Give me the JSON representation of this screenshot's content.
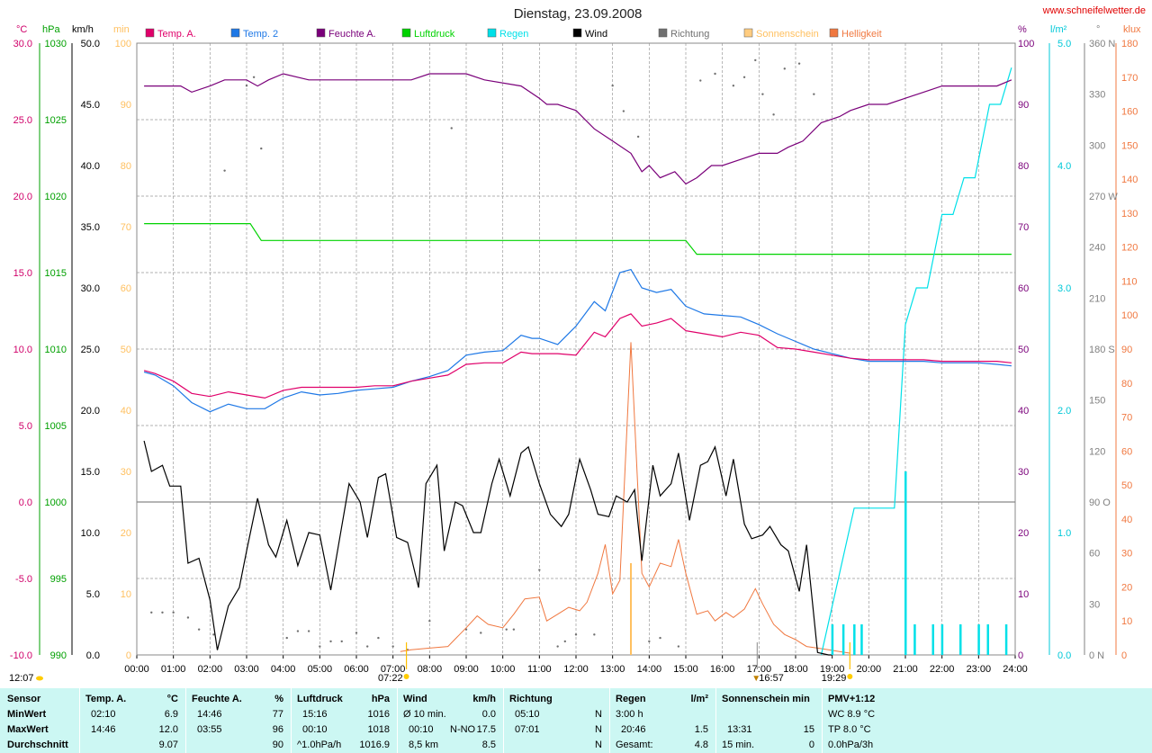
{
  "header": {
    "title": "Dienstag, 23.09.2008",
    "website": "www.schneifelwetter.de"
  },
  "legend": [
    {
      "label": "Temp. A.",
      "color": "#e0006a"
    },
    {
      "label": "Temp. 2",
      "color": "#1e78e6"
    },
    {
      "label": "Feuchte A.",
      "color": "#7a007a"
    },
    {
      "label": "Luftdruck",
      "color": "#00d200"
    },
    {
      "label": "Regen",
      "color": "#00e0e8"
    },
    {
      "label": "Wind",
      "color": "#000000"
    },
    {
      "label": "Richtung",
      "color": "#707070"
    },
    {
      "label": "Sonnenschein",
      "color": "#ffcc80"
    },
    {
      "label": "Helligkeit",
      "color": "#f07840"
    }
  ],
  "axes": {
    "temp": {
      "unit": "°C",
      "color": "#d0006a",
      "ticks": [
        "30.0",
        "25.0",
        "20.0",
        "15.0",
        "10.0",
        "5.0",
        "0.0",
        "-5.0",
        "-10.0"
      ]
    },
    "pressure": {
      "unit": "hPa",
      "color": "#00a000",
      "ticks": [
        "1030",
        "1025",
        "1020",
        "1015",
        "1010",
        "1005",
        "1000",
        "995",
        "990"
      ]
    },
    "wind": {
      "unit": "km/h",
      "color": "#000000",
      "ticks": [
        "50.0",
        "45.0",
        "40.0",
        "35.0",
        "30.0",
        "25.0",
        "20.0",
        "15.0",
        "10.0",
        "5.0",
        "0.0"
      ]
    },
    "sun": {
      "unit": "min",
      "color": "#ffc060",
      "ticks": [
        "100",
        "90",
        "80",
        "70",
        "60",
        "50",
        "40",
        "30",
        "20",
        "10",
        "0"
      ]
    },
    "humidity": {
      "unit": "%",
      "color": "#7a007a",
      "ticks": [
        "100",
        "90",
        "80",
        "70",
        "60",
        "50",
        "40",
        "30",
        "20",
        "10",
        "0"
      ]
    },
    "rain": {
      "unit": "l/m²",
      "color": "#00c8d8",
      "ticks": [
        "5.0",
        "4.0",
        "3.0",
        "2.0",
        "1.0",
        "0.0"
      ]
    },
    "direction": {
      "unit": "°",
      "color": "#808080",
      "ticks": [
        "360 N",
        "330",
        "300",
        "270 W",
        "240",
        "210",
        "180 S",
        "150",
        "120",
        "90 O",
        "60",
        "30",
        "0 N"
      ]
    },
    "light": {
      "unit": "klux",
      "color": "#f07840",
      "ticks": [
        "180",
        "170",
        "160",
        "150",
        "140",
        "130",
        "120",
        "110",
        "100",
        "90",
        "80",
        "70",
        "60",
        "50",
        "40",
        "30",
        "20",
        "10",
        "0"
      ]
    },
    "time_ticks": [
      "00:00",
      "01:00",
      "02:00",
      "03:00",
      "04:00",
      "05:00",
      "06:00",
      "07:00",
      "08:00",
      "09:00",
      "10:00",
      "11:00",
      "12:00",
      "13:00",
      "14:00",
      "15:00",
      "16:00",
      "17:00",
      "18:00",
      "19:00",
      "20:00",
      "21:00",
      "22:00",
      "23:00",
      "24:00"
    ]
  },
  "markers": {
    "sunrise": "07:22",
    "sunset": "19:29",
    "noon": "12:07",
    "max_light_time": "13:31",
    "annot_16": "16:57"
  },
  "chart_data": {
    "type": "line",
    "title": "Dienstag, 23.09.2008",
    "x_unit": "hours",
    "series": [
      {
        "name": "Temp. A.",
        "axis": "temp",
        "color": "#e0006a",
        "x": [
          0.2,
          0.5,
          1.0,
          1.5,
          2.0,
          2.5,
          3.0,
          3.5,
          4.0,
          4.5,
          5.0,
          5.5,
          6.0,
          6.5,
          7.0,
          7.5,
          8.0,
          8.5,
          9.0,
          9.5,
          10.0,
          10.5,
          10.8,
          11.0,
          11.5,
          12.0,
          12.5,
          12.8,
          13.2,
          13.5,
          13.8,
          14.2,
          14.6,
          15.0,
          15.5,
          16.0,
          16.5,
          17.0,
          17.5,
          18.0,
          18.5,
          19.0,
          19.5,
          20.0,
          20.5,
          21.0,
          21.5,
          22.0,
          22.5,
          23.0,
          23.5,
          23.9
        ],
        "y": [
          8.6,
          8.4,
          7.9,
          7.1,
          6.9,
          7.2,
          7.0,
          6.8,
          7.3,
          7.5,
          7.5,
          7.5,
          7.5,
          7.6,
          7.6,
          7.9,
          8.1,
          8.3,
          9.0,
          9.1,
          9.1,
          9.8,
          9.7,
          9.7,
          9.7,
          9.6,
          11.1,
          10.8,
          12.0,
          12.3,
          11.5,
          11.7,
          12.0,
          11.2,
          11.0,
          10.8,
          11.1,
          10.9,
          10.1,
          10.0,
          9.8,
          9.6,
          9.4,
          9.3,
          9.3,
          9.3,
          9.3,
          9.2,
          9.2,
          9.2,
          9.2,
          9.1
        ]
      },
      {
        "name": "Temp. 2",
        "axis": "temp",
        "color": "#1e78e6",
        "x": [
          0.2,
          0.5,
          1.0,
          1.5,
          2.0,
          2.5,
          3.0,
          3.5,
          4.0,
          4.5,
          5.0,
          5.5,
          6.0,
          6.5,
          7.0,
          7.5,
          8.0,
          8.5,
          9.0,
          9.5,
          10.0,
          10.5,
          10.8,
          11.0,
          11.5,
          12.0,
          12.5,
          12.8,
          13.2,
          13.5,
          13.8,
          14.2,
          14.6,
          15.0,
          15.5,
          16.0,
          16.5,
          17.0,
          17.5,
          18.0,
          18.5,
          19.0,
          19.5,
          20.0,
          20.5,
          21.0,
          21.5,
          22.0,
          22.5,
          23.0,
          23.5,
          23.9
        ],
        "y": [
          8.5,
          8.3,
          7.6,
          6.5,
          5.9,
          6.4,
          6.1,
          6.1,
          6.8,
          7.2,
          7.0,
          7.1,
          7.3,
          7.4,
          7.5,
          7.9,
          8.2,
          8.6,
          9.6,
          9.8,
          9.9,
          10.9,
          10.7,
          10.7,
          10.3,
          11.5,
          13.1,
          12.5,
          15.0,
          15.2,
          14.0,
          13.7,
          13.9,
          12.8,
          12.3,
          12.2,
          12.1,
          11.6,
          11.0,
          10.5,
          10.0,
          9.7,
          9.4,
          9.2,
          9.2,
          9.2,
          9.2,
          9.1,
          9.1,
          9.1,
          9.0,
          8.9
        ]
      },
      {
        "name": "Feuchte A.",
        "axis": "humidity",
        "color": "#7a007a",
        "x": [
          0.2,
          1.2,
          1.5,
          2.0,
          2.4,
          3.0,
          3.3,
          3.6,
          4.0,
          4.7,
          5.2,
          7.5,
          8.0,
          9.0,
          9.5,
          10.5,
          11.0,
          11.2,
          11.5,
          12.0,
          12.5,
          13.0,
          13.5,
          13.8,
          14.0,
          14.3,
          14.7,
          15.0,
          15.3,
          15.7,
          16.0,
          16.5,
          17.0,
          17.5,
          17.8,
          18.2,
          18.7,
          19.2,
          19.5,
          20.0,
          20.5,
          21.0,
          21.5,
          22.0,
          23.5,
          23.9
        ],
        "y": [
          93,
          93,
          92,
          93,
          94,
          94,
          93,
          94,
          95,
          94,
          94,
          94,
          95,
          95,
          94,
          93,
          91,
          90,
          90,
          89,
          86,
          84,
          82,
          79,
          80,
          78,
          79,
          77,
          78,
          80,
          80,
          81,
          82,
          82,
          83,
          84,
          87,
          88,
          89,
          90,
          90,
          91,
          92,
          93,
          93,
          94
        ]
      },
      {
        "name": "Luftdruck",
        "axis": "pressure",
        "color": "#00d200",
        "x": [
          0.2,
          3.1,
          3.4,
          15.0,
          15.3,
          23.9
        ],
        "y": [
          1018.2,
          1018.2,
          1017.1,
          1017.1,
          1016.2,
          1016.2
        ]
      },
      {
        "name": "Regen",
        "axis": "rain",
        "color": "#00e0e8",
        "x": [
          18.7,
          19.6,
          20.7,
          21.0,
          21.3,
          21.6,
          22.0,
          22.3,
          22.6,
          22.9,
          23.1,
          23.3,
          23.6,
          23.9
        ],
        "y": [
          0.0,
          1.2,
          1.2,
          2.7,
          3.0,
          3.0,
          3.6,
          3.6,
          3.9,
          3.9,
          4.2,
          4.5,
          4.5,
          4.8
        ]
      },
      {
        "name": "Wind",
        "axis": "wind",
        "color": "#000000",
        "x": [
          0.2,
          0.4,
          0.7,
          0.9,
          1.2,
          1.4,
          1.7,
          2.0,
          2.2,
          2.5,
          2.8,
          3.0,
          3.3,
          3.6,
          3.8,
          4.1,
          4.4,
          4.7,
          5.0,
          5.3,
          5.6,
          5.8,
          6.1,
          6.3,
          6.6,
          6.8,
          7.1,
          7.4,
          7.7,
          7.9,
          8.2,
          8.4,
          8.7,
          8.9,
          9.2,
          9.4,
          9.7,
          9.9,
          10.2,
          10.5,
          10.7,
          11.0,
          11.3,
          11.6,
          11.8,
          12.1,
          12.4,
          12.6,
          12.9,
          13.1,
          13.4,
          13.6,
          13.8,
          14.1,
          14.3,
          14.6,
          14.8,
          15.1,
          15.4,
          15.6,
          15.8,
          16.1,
          16.3,
          16.6,
          16.8,
          17.1,
          17.3,
          17.6,
          17.8,
          18.1,
          18.3,
          18.6,
          18.9,
          19.0
        ],
        "y": [
          17.5,
          15.0,
          15.5,
          13.8,
          13.8,
          7.5,
          7.9,
          4.5,
          0.4,
          4.0,
          5.5,
          8.5,
          12.8,
          9.0,
          8.0,
          11.0,
          7.3,
          10.0,
          9.8,
          5.3,
          10.5,
          14.0,
          12.5,
          9.6,
          14.5,
          14.8,
          9.6,
          9.2,
          5.5,
          14.0,
          15.5,
          8.5,
          12.5,
          12.2,
          10.0,
          10.0,
          14.0,
          16.0,
          13.0,
          16.5,
          17.0,
          14.0,
          11.5,
          10.5,
          11.5,
          16.0,
          13.5,
          11.5,
          11.3,
          13.0,
          12.5,
          13.5,
          7.7,
          15.5,
          13.0,
          14.0,
          16.5,
          11.0,
          15.5,
          15.8,
          17.0,
          13.0,
          16.0,
          10.7,
          9.5,
          9.8,
          10.5,
          9.0,
          8.5,
          5.2,
          9.0,
          0.2,
          0.0,
          0.0
        ]
      },
      {
        "name": "Helligkeit",
        "axis": "light",
        "color": "#f07840",
        "x": [
          7.2,
          7.5,
          8.0,
          8.5,
          9.0,
          9.3,
          9.6,
          10.0,
          10.3,
          10.6,
          11.0,
          11.2,
          11.5,
          11.8,
          12.1,
          12.3,
          12.6,
          12.8,
          13.0,
          13.2,
          13.5,
          13.8,
          14.0,
          14.3,
          14.6,
          14.8,
          15.0,
          15.3,
          15.6,
          15.8,
          16.1,
          16.3,
          16.6,
          16.9,
          17.1,
          17.4,
          17.7,
          18.0,
          18.3,
          18.6,
          18.9,
          19.2,
          19.5
        ],
        "y": [
          1.0,
          1.5,
          2.0,
          2.5,
          8.0,
          11.5,
          9.0,
          8.0,
          12.0,
          16.5,
          17.0,
          10.0,
          12.0,
          14.0,
          13.0,
          15.5,
          24.0,
          32.5,
          18.0,
          22.0,
          92.0,
          24.0,
          20.0,
          27.0,
          26.0,
          34.0,
          24.0,
          12.0,
          13.0,
          10.0,
          12.5,
          11.0,
          13.5,
          19.5,
          15.0,
          9.0,
          6.0,
          4.5,
          2.5,
          2.0,
          1.5,
          1.0,
          0.5
        ]
      }
    ],
    "rain_bars": {
      "axis": "rain",
      "color": "#00e0e8",
      "x": [
        19.0,
        19.3,
        19.6,
        19.8,
        21.0,
        21.25,
        21.75,
        22.0,
        22.5,
        23.0,
        23.25,
        23.75
      ],
      "y": [
        0.25,
        0.25,
        0.25,
        0.25,
        1.5,
        0.25,
        0.25,
        0.25,
        0.25,
        0.25,
        0.25,
        0.25
      ]
    },
    "sunshine_bar": {
      "axis": "sun",
      "color": "#ffcc80",
      "x": 13.5,
      "y": 15
    },
    "direction_points": {
      "name": "Richtung",
      "axis": "direction",
      "color": "#707070",
      "x": [
        0.4,
        0.7,
        1.0,
        1.4,
        1.7,
        2.1,
        2.4,
        3.0,
        3.2,
        3.4,
        4.1,
        4.4,
        4.7,
        5.0,
        5.3,
        5.6,
        6.0,
        6.3,
        6.6,
        7.0,
        7.4,
        8.0,
        8.6,
        9.0,
        9.4,
        10.1,
        10.3,
        11.0,
        11.5,
        11.7,
        12.0,
        12.5,
        13.0,
        13.3,
        13.7,
        14.0,
        14.3,
        14.8,
        15.4,
        15.8,
        16.3,
        16.6,
        16.9,
        17.1,
        17.4,
        17.7,
        18.1,
        18.5
      ],
      "y": [
        25,
        25,
        25,
        22,
        15,
        12,
        285,
        335,
        340,
        298,
        10,
        14,
        14,
        5,
        8,
        8,
        13,
        5,
        10,
        5,
        3,
        20,
        310,
        15,
        13,
        15,
        15,
        50,
        5,
        8,
        12,
        12,
        335,
        320,
        305,
        8,
        10,
        5,
        338,
        342,
        335,
        340,
        350,
        330,
        318,
        345,
        348,
        330
      ]
    }
  },
  "summary": {
    "sensor": {
      "label": "Sensor",
      "rows": [
        "MinWert",
        "MaxWert",
        "Durchschnitt"
      ]
    },
    "temp": {
      "label": "Temp. A.",
      "unit": "°C",
      "min_time": "02:10",
      "min": "6.9",
      "max_time": "14:46",
      "max": "12.0",
      "avg": "9.07"
    },
    "humidity": {
      "label": "Feuchte A.",
      "unit": "%",
      "min_time": "14:46",
      "min": "77",
      "max_time": "03:55",
      "max": "96",
      "avg": "90"
    },
    "pressure": {
      "label": "Luftdruck",
      "unit": "hPa",
      "min_time": "15:16",
      "min": "1016",
      "max_time": "00:10",
      "max": "1018",
      "avg_label": "^1.0hPa/h",
      "avg": "1016.9"
    },
    "wind": {
      "label": "Wind",
      "unit": "km/h",
      "min_time": "Ø 10 min.",
      "min": "0.0",
      "max_time": "00:10",
      "max_dir": "N-NO",
      "max": "17.5",
      "avg_label": "8,5 km",
      "avg": "8.5"
    },
    "direction": {
      "label": "Richtung",
      "min_time": "05:10",
      "min": "N",
      "max_time": "07:01",
      "max": "N",
      "avg": "N"
    },
    "rain": {
      "label": "Regen",
      "unit": "l/m²",
      "r1_label": "3:00 h",
      "r1": "",
      "r2_label": "20:46",
      "r2": "1.5",
      "r3_label": "Gesamt:",
      "r3": "4.8"
    },
    "sunshine": {
      "label": "Sonnenschein min",
      "r2_label": "13:31",
      "r2": "15",
      "r3_label": "15 min.",
      "r3": "0"
    },
    "pmv": {
      "label": "PMV+1:12",
      "r1": "WC 8.9 °C",
      "r2": "TP 8.0 °C",
      "r3": "0.0hPa/3h"
    }
  }
}
